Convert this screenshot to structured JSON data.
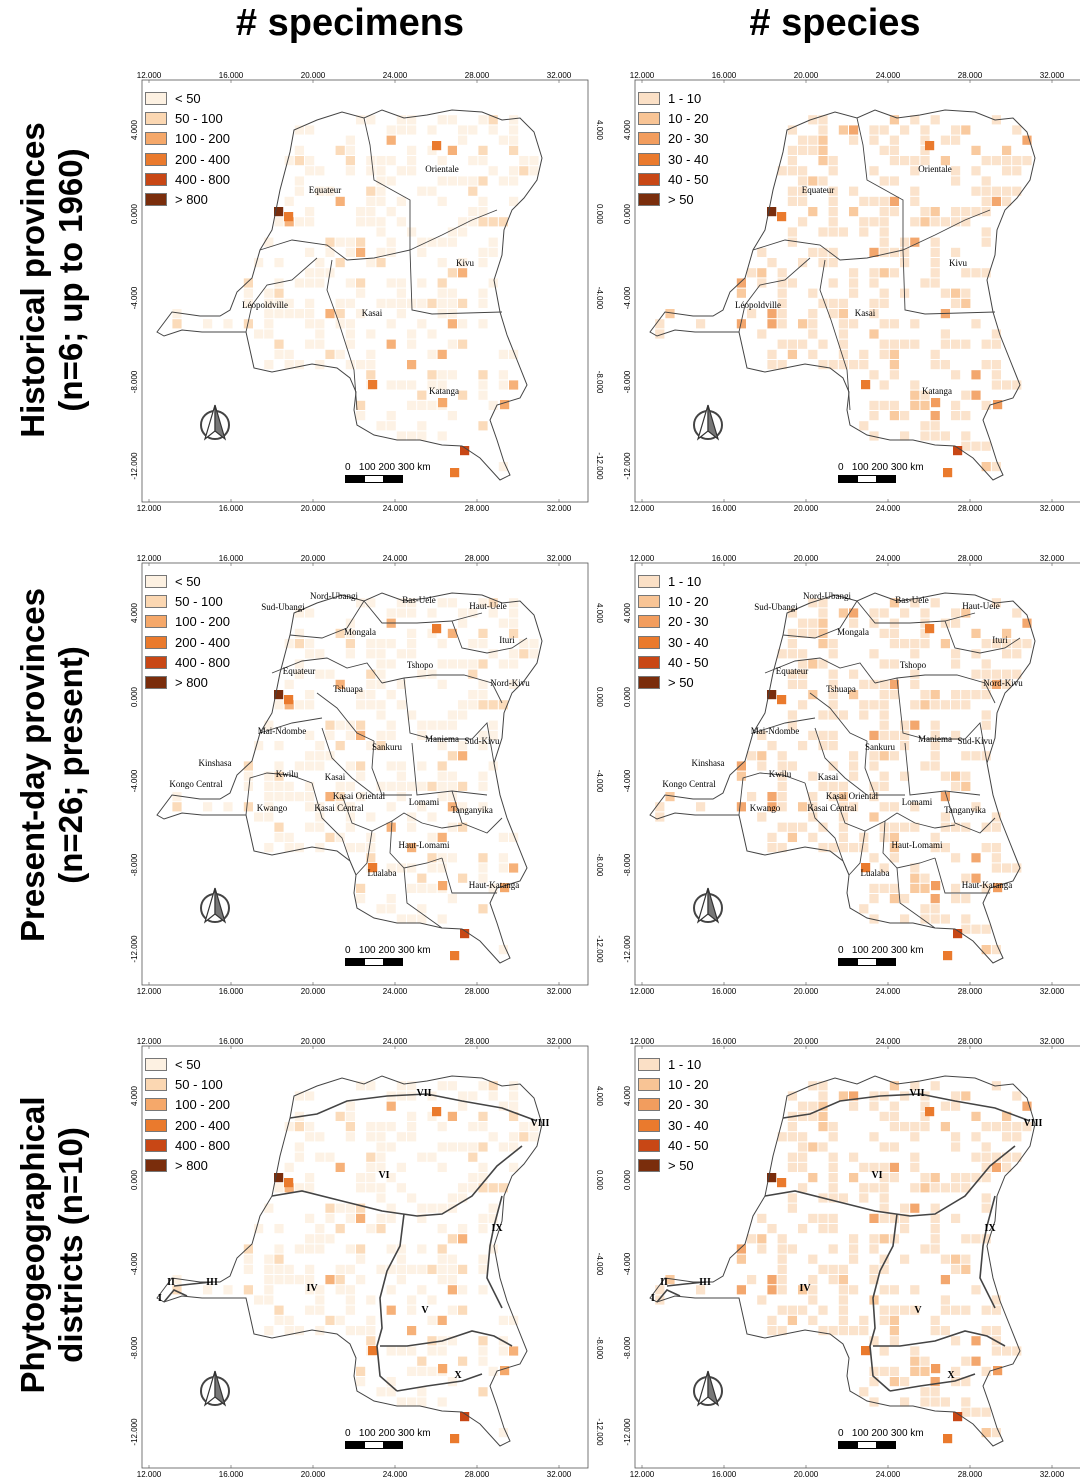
{
  "columns": [
    {
      "title": "# specimens"
    },
    {
      "title": "# species"
    }
  ],
  "rows": [
    {
      "title_line1": "Historical provinces",
      "title_line2": "(n=6; up to 1960)"
    },
    {
      "title_line1": "Present-day provinces",
      "title_line2": "(n=26; present)"
    },
    {
      "title_line1": "Phytogeographical",
      "title_line2": "districts (n=10)"
    }
  ],
  "axes": {
    "x_ticks": [
      "12.000",
      "16.000",
      "20.000",
      "24.000",
      "28.000",
      "32.000"
    ],
    "y_ticks": [
      "4.000",
      "0.000",
      "-4.000",
      "-8.000",
      "-12.000"
    ]
  },
  "legends": {
    "specimens": {
      "labels": [
        "< 50",
        "50 - 100",
        "100 - 200",
        "200 - 400",
        "400 - 800",
        "> 800"
      ],
      "colors": [
        "#fdf1e2",
        "#fbd7b2",
        "#f5a86a",
        "#ea7a2d",
        "#c84715",
        "#7a2d0c"
      ]
    },
    "species": {
      "labels": [
        "1 - 10",
        "10 - 20",
        "20 - 30",
        "30 - 40",
        "40 - 50",
        "> 50"
      ],
      "colors": [
        "#fbe0c6",
        "#f8c495",
        "#f29d5e",
        "#ea7a2d",
        "#c84715",
        "#7a2d0c"
      ]
    }
  },
  "scalebar": {
    "label": "0   100 200 300 km"
  },
  "regions": {
    "historical": [
      "Orientale",
      "Equateur",
      "Kivu",
      "Léopoldville",
      "Kasai",
      "Katanga"
    ],
    "present": [
      "Nord-Ubangi",
      "Bas-Uele",
      "Haut-Uele",
      "Sud-Ubangi",
      "Mongala",
      "Ituri",
      "Equateur",
      "Tshopo",
      "Tshuapa",
      "Nord-Kivu",
      "Mai-Ndombe",
      "Sankuru",
      "Maniema",
      "Sud-Kivu",
      "Kinshasa",
      "Kwilu",
      "Kasai",
      "Kongo Central",
      "Kasai Oriental",
      "Lomami",
      "Kasai Central",
      "Kwango",
      "Tanganyika",
      "Haut-Lomami",
      "Lualaba",
      "Haut-Katanga"
    ],
    "districts": [
      "I",
      "II",
      "III",
      "IV",
      "V",
      "VI",
      "VII",
      "VIII",
      "IX",
      "X"
    ]
  }
}
